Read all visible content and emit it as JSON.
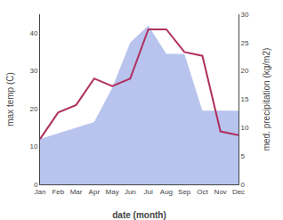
{
  "chart_data": {
    "type": "line",
    "categories": [
      "Jan",
      "Feb",
      "Mar",
      "Apr",
      "May",
      "Jun",
      "Jul",
      "Aug",
      "Sep",
      "Oct",
      "Nov",
      "Dec"
    ],
    "series": [
      {
        "type": "area",
        "axis": "y2",
        "color": "#b8c4ee",
        "values": [
          8,
          9,
          10,
          11,
          17,
          25,
          28,
          23,
          23,
          13,
          13,
          13
        ]
      },
      {
        "type": "line",
        "color": "#b03060",
        "values": [
          12,
          19,
          21,
          28,
          26,
          28,
          41,
          41,
          35,
          34,
          14,
          13
        ]
      }
    ],
    "xlabel": "date (month)",
    "ylabel": "max temp (C)",
    "y2label": "med. precipitation (kg/m2)",
    "ylim": [
      0,
      45
    ],
    "yticks": [
      0,
      10,
      20,
      30,
      40
    ],
    "y2lim": [
      0,
      30
    ],
    "y2ticks": [
      0,
      5,
      10,
      15,
      20,
      25,
      30
    ],
    "grid": false
  }
}
